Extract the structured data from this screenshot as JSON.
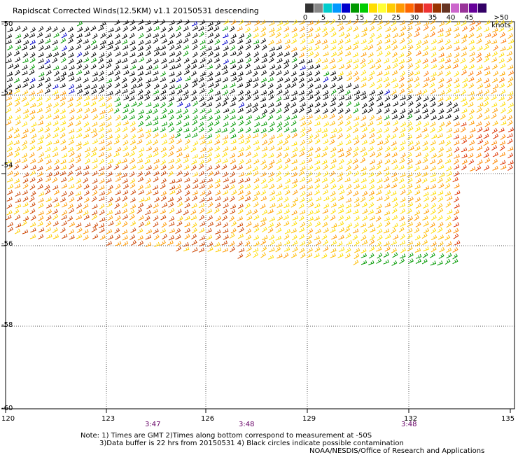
{
  "title": "Rapidscat Corrected Winds(12.5KM) v1.1 20150531 descending",
  "legend": {
    "labels": [
      "0",
      "5",
      "10",
      "15",
      "20",
      "25",
      "30",
      "35",
      "40",
      "45",
      ">50 knots"
    ],
    "colors": [
      "#333333",
      "#888888",
      "#00cccc",
      "#0099ff",
      "#0000cc",
      "#009900",
      "#00cc00",
      "#ffdd00",
      "#ffff33",
      "#ffcc00",
      "#ff9900",
      "#ff6600",
      "#cc3300",
      "#ee3333",
      "#993300",
      "#663322",
      "#cc66cc",
      "#993399",
      "#660099",
      "#330066"
    ]
  },
  "axes": {
    "lat_labels": [
      "-50",
      "-52",
      "-54",
      "-56",
      "-58",
      "-60"
    ],
    "lon_labels": [
      "120",
      "123",
      "126",
      "129",
      "132",
      "135"
    ]
  },
  "times": [
    "3:47",
    "3:48",
    "3:48"
  ],
  "notes": {
    "line1": "Note: 1) Times are GMT 2)Times along bottom correspond to measurement at -50S",
    "line2": "3)Data buffer is 22 hrs from 20150531 4) Black circles indicate possible contamination",
    "credit": "NOAA/NESDIS/Office of Research and Applications"
  }
}
